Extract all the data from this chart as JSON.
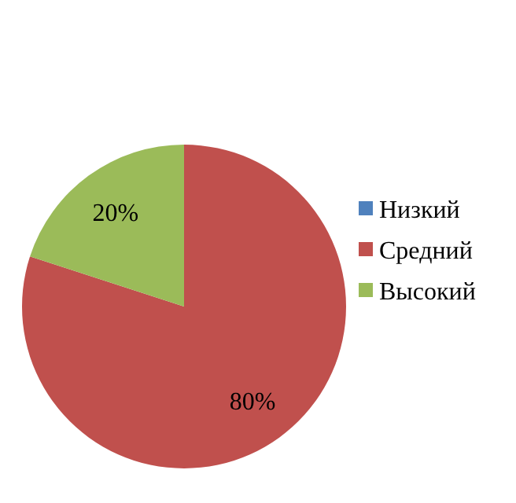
{
  "chart_data": {
    "type": "pie",
    "categories": [
      "Низкий",
      "Средний",
      "Высокий"
    ],
    "values": [
      0,
      80,
      20
    ],
    "colors": [
      "#4f81bd",
      "#c0504d",
      "#9bbb59"
    ],
    "value_labels": [
      null,
      "80%",
      "20%"
    ],
    "legend": "right"
  }
}
